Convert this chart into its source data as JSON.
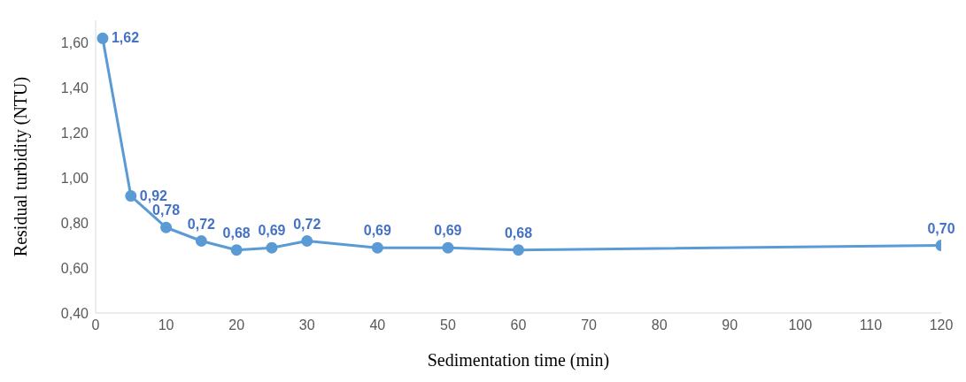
{
  "chart_data": {
    "type": "line",
    "xlabel": "Sedimentation time (min)",
    "ylabel": "Residual turbidity (NTU)",
    "x": [
      1,
      5,
      10,
      15,
      20,
      25,
      30,
      40,
      50,
      60,
      120
    ],
    "series": [
      {
        "color": "#5b9bd5",
        "values": [
          1.62,
          0.92,
          0.78,
          0.72,
          0.68,
          0.69,
          0.72,
          0.69,
          0.69,
          0.68,
          0.7
        ],
        "value_labels": [
          "1,62",
          "0,92",
          "0,78",
          "0,72",
          "0,68",
          "0,69",
          "0,72",
          "0,69",
          "0,69",
          "0,68",
          "0,70"
        ]
      }
    ],
    "xlim": [
      0,
      120
    ],
    "xticks": [
      0,
      10,
      20,
      30,
      40,
      50,
      60,
      70,
      80,
      90,
      100,
      110,
      120
    ],
    "ylim": [
      0.4,
      1.7
    ],
    "yticks": [
      {
        "value": 0.4,
        "label": "0,40"
      },
      {
        "value": 0.6,
        "label": "0,60"
      },
      {
        "value": 0.8,
        "label": "0,80"
      },
      {
        "value": 1.0,
        "label": "1,00"
      },
      {
        "value": 1.2,
        "label": "1,20"
      },
      {
        "value": 1.4,
        "label": "1,40"
      },
      {
        "value": 1.6,
        "label": "1,60"
      }
    ],
    "grid": false,
    "legend": false,
    "marker": "circle",
    "line_style": "solid"
  }
}
